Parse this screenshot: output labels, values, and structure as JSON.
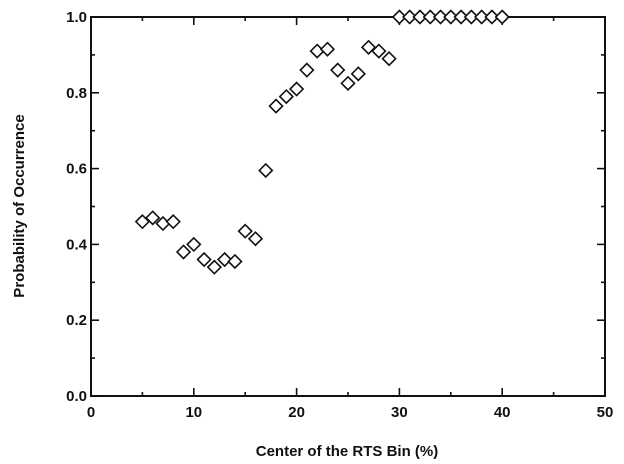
{
  "chart_data": {
    "type": "scatter",
    "title": "",
    "xlabel": "Center of the RTS Bin (%)",
    "ylabel": "Probability of Occurrence",
    "xlim": [
      0,
      50
    ],
    "ylim": [
      0,
      1.0
    ],
    "x_ticks": [
      0,
      10,
      20,
      30,
      40,
      50
    ],
    "y_ticks": [
      0.0,
      0.2,
      0.4,
      0.6,
      0.8,
      1.0
    ],
    "x_tick_labels": [
      "0",
      "10",
      "20",
      "30",
      "40",
      "50"
    ],
    "y_tick_labels": [
      "0.0",
      "0.2",
      "0.4",
      "0.6",
      "0.8",
      "1.0"
    ],
    "grid": false,
    "marker": "diamond-open",
    "series": [
      {
        "x": [
          5,
          6,
          7,
          8,
          9,
          10,
          11,
          12,
          13,
          14,
          15,
          16,
          17,
          18,
          19,
          20,
          21,
          22,
          23,
          24,
          25,
          26,
          27,
          28,
          29,
          30,
          31,
          32,
          33,
          34,
          35,
          36,
          37,
          38,
          39,
          40
        ],
        "y": [
          0.46,
          0.47,
          0.455,
          0.46,
          0.38,
          0.4,
          0.36,
          0.34,
          0.36,
          0.355,
          0.435,
          0.415,
          0.595,
          0.765,
          0.79,
          0.81,
          0.86,
          0.91,
          0.915,
          0.86,
          0.825,
          0.85,
          0.92,
          0.91,
          0.89,
          1.0,
          1.0,
          1.0,
          1.0,
          1.0,
          1.0,
          1.0,
          1.0,
          1.0,
          1.0,
          1.0
        ]
      }
    ]
  }
}
